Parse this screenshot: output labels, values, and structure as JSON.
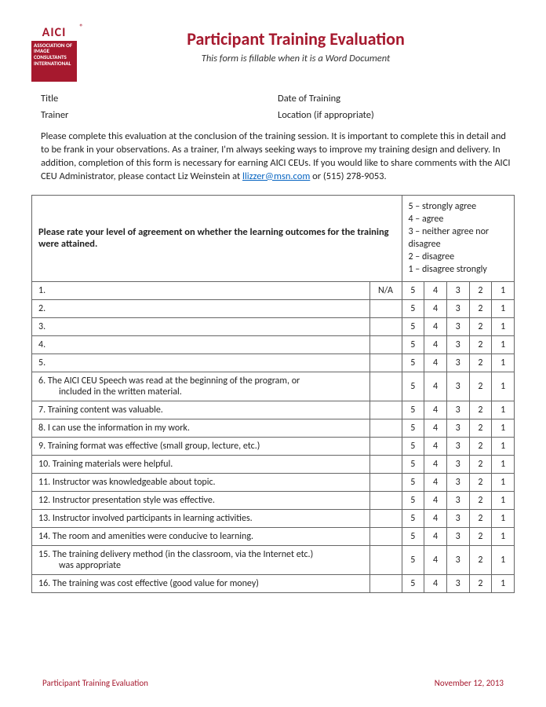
{
  "logo": {
    "top": "AICI",
    "lines": "ASSOCIATION OF IMAGE CONSULTANTS INTERNATIONAL",
    "reg": "®"
  },
  "header": {
    "title": "Participant Training Evaluation",
    "subtitle": "This form is fillable when it is a Word Document"
  },
  "meta": {
    "title_label": "Title",
    "date_label": "Date of Training",
    "trainer_label": "Trainer",
    "location_label": "Location (if appropriate)"
  },
  "intro": {
    "text_before_link": "Please complete this evaluation at the conclusion of the training session. It is important to complete this in detail and to be frank in your observations. As a trainer, I'm always seeking ways to improve my training design and delivery. In addition, completion of this form is necessary for earning AICI CEUs.  If you would like to share comments with the AICI CEU Administrator, please contact Liz Weinstein at ",
    "link_text": "llizzer@msn.com",
    "text_after_link": " or (515) 278-9053."
  },
  "table_header": {
    "left": "Please rate your level of agreement on whether the learning outcomes for the training were attained.",
    "scale": [
      "5 – strongly agree",
      "4 – agree",
      "3 – neither agree nor disagree",
      "2 – disagree",
      "1 – disagree strongly"
    ]
  },
  "columns": {
    "na": "N/A",
    "r5": "5",
    "r4": "4",
    "r3": "3",
    "r2": "2",
    "r1": "1"
  },
  "rows": [
    {
      "q": "1.",
      "na": "N/A"
    },
    {
      "q": "2."
    },
    {
      "q": "3."
    },
    {
      "q": "4."
    },
    {
      "q": "5."
    },
    {
      "q": "6.  The AICI CEU Speech was read at the beginning of the program, or",
      "q2": "included in the written material."
    },
    {
      "q": "7.  Training content was valuable."
    },
    {
      "q": "8.  I can use the information in my work."
    },
    {
      "q": "9.  Training format was effective (small group, lecture, etc.)"
    },
    {
      "q": "10.  Training materials were helpful."
    },
    {
      "q": "11.  Instructor was knowledgeable about topic."
    },
    {
      "q": "12.  Instructor presentation style was effective."
    },
    {
      "q": "13.  Instructor involved participants in learning activities."
    },
    {
      "q": "14.  The room and amenities were conducive to learning."
    },
    {
      "q": "15.  The training delivery method (in the classroom, via the Internet etc.)",
      "q2": "was appropriate"
    },
    {
      "q": "16.  The training was cost effective (good value for money)"
    }
  ],
  "footer": {
    "left": "Participant Training Evaluation",
    "right": "November 12, 2013"
  },
  "colors": {
    "brand": "#a6192e",
    "link": "#0563c1",
    "border": "#666666",
    "text": "#222222",
    "bg": "#ffffff"
  }
}
